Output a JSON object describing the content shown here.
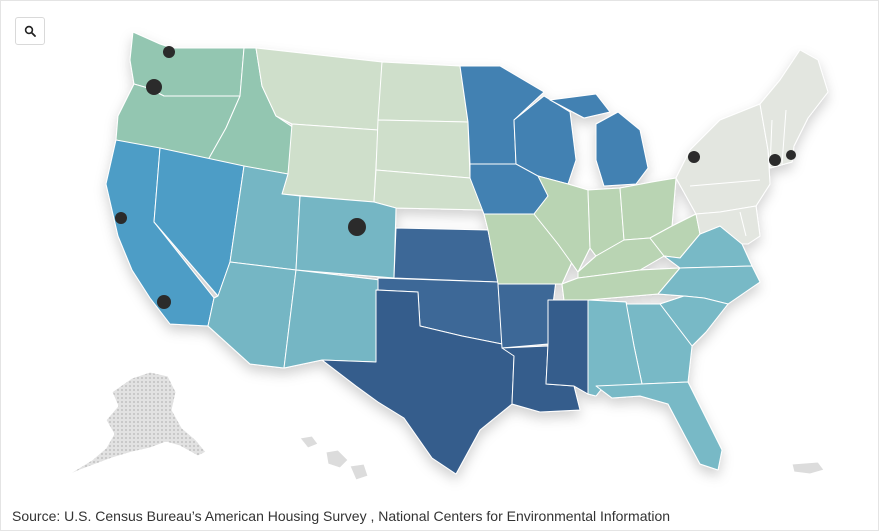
{
  "toolbar": {
    "search_icon": "search-icon"
  },
  "map": {
    "colors": {
      "northwest": "#93c6b1",
      "northern_plains": "#cfdfcb",
      "upper_midwest": "#4281b2",
      "southwest_ca_nv": "#4d9dc6",
      "southwest_ut_co_az_nm": "#75b6c4",
      "south_central": "#3d6897",
      "south_central_dark": "#345d8c",
      "ohio_valley": "#b9d4b3",
      "southeast": "#78b9c6",
      "northeast": "#e3e6e0",
      "alaska_hawaii": "#d7d7d7"
    },
    "regions": [
      "Northwest",
      "Northern Rockies and Plains",
      "Upper Midwest",
      "West",
      "Southwest",
      "South",
      "Ohio Valley",
      "Southeast",
      "Northeast"
    ],
    "cities": [
      {
        "name": "Seattle"
      },
      {
        "name": "Portland"
      },
      {
        "name": "San Francisco"
      },
      {
        "name": "Los Angeles"
      },
      {
        "name": "Denver"
      },
      {
        "name": "Rochester"
      },
      {
        "name": "Hartford"
      },
      {
        "name": "Boston"
      }
    ]
  },
  "source_text": "Source: U.S. Census Bureau’s American Housing Survey , National Centers for Environmental Information"
}
